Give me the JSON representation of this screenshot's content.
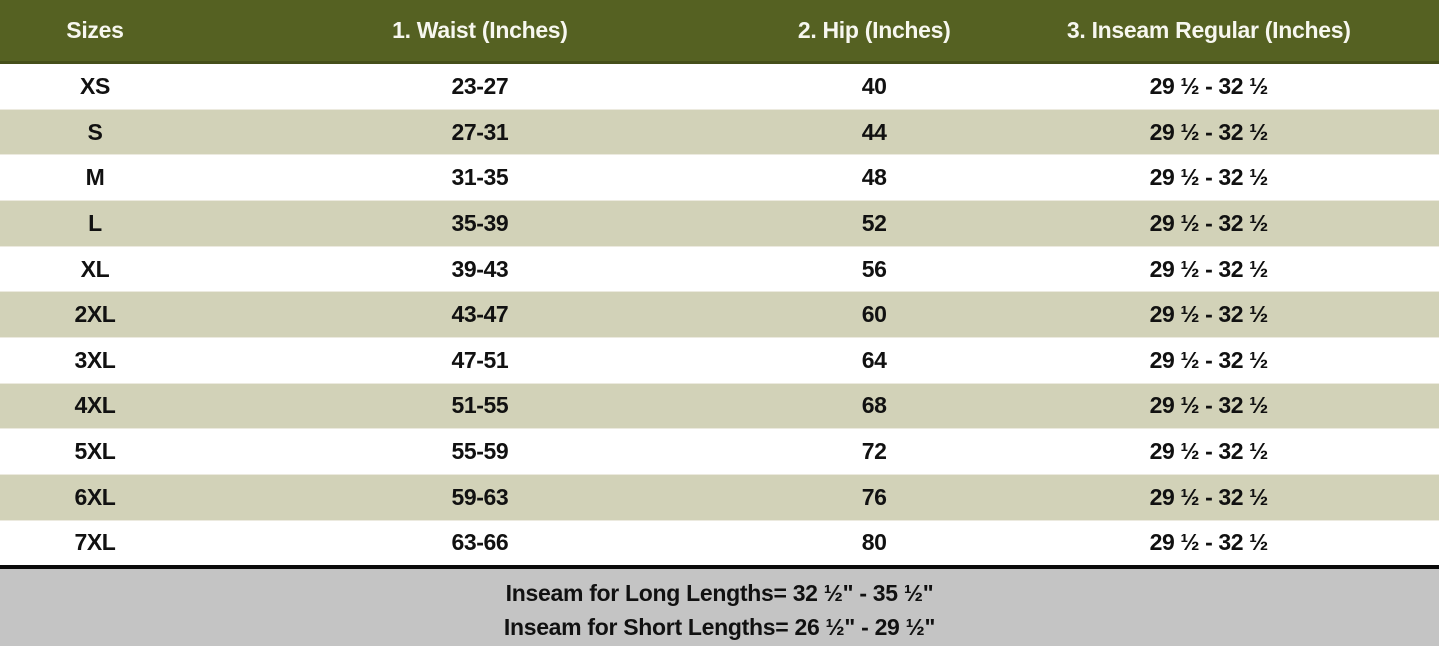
{
  "colors": {
    "header-bg": "#556122",
    "header-border": "#454f1a",
    "header-text": "#f7f7ef",
    "row-bg": "#ffffff",
    "row-alt-bg": "#d2d2b8",
    "body-text": "#111111",
    "divider": "#0a0a0a",
    "footer-bg": "#c4c4c4"
  },
  "header": {
    "columns": [
      "Sizes",
      "1. Waist (Inches)",
      "2. Hip (Inches)",
      "3. Inseam Regular (Inches)"
    ]
  },
  "rows": [
    {
      "size": "XS",
      "waist": "23-27",
      "hip": "40",
      "inseam": "29 ½ - 32 ½"
    },
    {
      "size": "S",
      "waist": "27-31",
      "hip": "44",
      "inseam": "29 ½ - 32 ½"
    },
    {
      "size": "M",
      "waist": "31-35",
      "hip": "48",
      "inseam": "29 ½ - 32 ½"
    },
    {
      "size": "L",
      "waist": "35-39",
      "hip": "52",
      "inseam": "29 ½ - 32 ½"
    },
    {
      "size": "XL",
      "waist": "39-43",
      "hip": "56",
      "inseam": "29 ½ - 32 ½"
    },
    {
      "size": "2XL",
      "waist": "43-47",
      "hip": "60",
      "inseam": "29 ½ - 32 ½"
    },
    {
      "size": "3XL",
      "waist": "47-51",
      "hip": "64",
      "inseam": "29 ½ - 32 ½"
    },
    {
      "size": "4XL",
      "waist": "51-55",
      "hip": "68",
      "inseam": "29 ½ - 32 ½"
    },
    {
      "size": "5XL",
      "waist": "55-59",
      "hip": "72",
      "inseam": "29 ½ - 32 ½"
    },
    {
      "size": "6XL",
      "waist": "59-63",
      "hip": "76",
      "inseam": "29 ½ - 32 ½"
    },
    {
      "size": "7XL",
      "waist": "63-66",
      "hip": "80",
      "inseam": "29 ½ - 32 ½"
    }
  ],
  "footer": {
    "line1": "Inseam for Long Lengths= 32 ½\" - 35 ½\"",
    "line2": "Inseam for Short Lengths= 26 ½\" - 29 ½\""
  },
  "chart_data": {
    "type": "table",
    "title": "Size chart",
    "columns": [
      "Sizes",
      "1. Waist (Inches)",
      "2. Hip (Inches)",
      "3. Inseam Regular (Inches)"
    ],
    "rows": [
      [
        "XS",
        "23-27",
        "40",
        "29 ½ - 32 ½"
      ],
      [
        "S",
        "27-31",
        "44",
        "29 ½ - 32 ½"
      ],
      [
        "M",
        "31-35",
        "48",
        "29 ½ - 32 ½"
      ],
      [
        "L",
        "35-39",
        "52",
        "29 ½ - 32 ½"
      ],
      [
        "XL",
        "39-43",
        "56",
        "29 ½ - 32 ½"
      ],
      [
        "2XL",
        "43-47",
        "60",
        "29 ½ - 32 ½"
      ],
      [
        "3XL",
        "47-51",
        "64",
        "29 ½ - 32 ½"
      ],
      [
        "4XL",
        "51-55",
        "68",
        "29 ½ - 32 ½"
      ],
      [
        "5XL",
        "55-59",
        "72",
        "29 ½ - 32 ½"
      ],
      [
        "6XL",
        "59-63",
        "76",
        "29 ½ - 32 ½"
      ],
      [
        "7XL",
        "63-66",
        "80",
        "29 ½ - 32 ½"
      ]
    ],
    "footnotes": [
      "Inseam for Long Lengths= 32 ½\" - 35 ½\"",
      "Inseam for Short Lengths= 26 ½\" - 29 ½\""
    ],
    "layout_hints": {
      "striped_rows": true,
      "header_style": "dark-olive background, white bold text",
      "footnote_style": "gray band below black divider, centered bold text"
    }
  }
}
